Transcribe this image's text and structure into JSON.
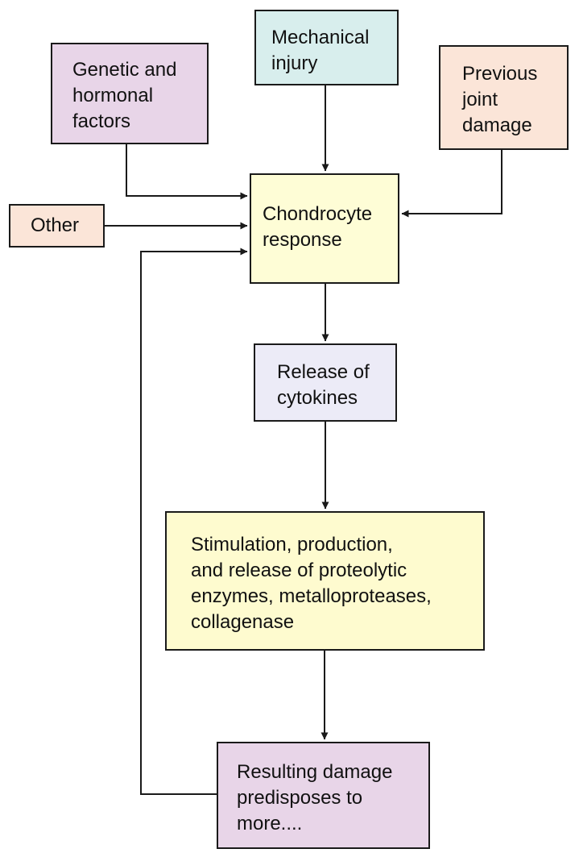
{
  "colors": {
    "line": "#1a1a1a",
    "lilac": "#e8d5e8",
    "teal": "#d8eeed",
    "peach": "#fbe5d8",
    "cream": "#fefdd6",
    "lavender": "#ecebf7",
    "yellow": "#fefbcf"
  },
  "nodes": {
    "mechanical": {
      "label": "Mechanical\ninjury"
    },
    "genetic": {
      "label": "Genetic and\nhormonal\nfactors"
    },
    "previous": {
      "label": "Previous\njoint\ndamage"
    },
    "other": {
      "label": "Other"
    },
    "chondrocyte": {
      "label": "Chondrocyte\nresponse"
    },
    "release": {
      "label": "Release of\ncytokines"
    },
    "stimulation": {
      "label": "Stimulation, production,\nand release of proteolytic\nenzymes, metalloproteases,\ncollagenase"
    },
    "resulting": {
      "label": "Resulting damage\npredisposes to\nmore...."
    }
  },
  "edges": [
    {
      "from": "mechanical",
      "to": "chondrocyte"
    },
    {
      "from": "genetic",
      "to": "chondrocyte"
    },
    {
      "from": "previous",
      "to": "chondrocyte"
    },
    {
      "from": "other",
      "to": "chondrocyte"
    },
    {
      "from": "chondrocyte",
      "to": "release"
    },
    {
      "from": "release",
      "to": "stimulation"
    },
    {
      "from": "stimulation",
      "to": "resulting"
    },
    {
      "from": "resulting",
      "to": "chondrocyte",
      "type": "feedback"
    }
  ]
}
